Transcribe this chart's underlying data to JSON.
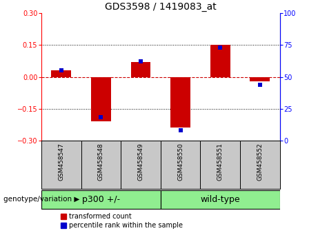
{
  "title": "GDS3598 / 1419083_at",
  "samples": [
    "GSM458547",
    "GSM458548",
    "GSM458549",
    "GSM458550",
    "GSM458551",
    "GSM458552"
  ],
  "transformed_counts": [
    0.03,
    -0.21,
    0.07,
    -0.24,
    0.15,
    -0.02
  ],
  "percentile_ranks": [
    55,
    18,
    62,
    8,
    73,
    44
  ],
  "n_p300": 3,
  "n_wildtype": 3,
  "ylim_left": [
    -0.3,
    0.3
  ],
  "ylim_right": [
    0,
    100
  ],
  "yticks_left": [
    -0.3,
    -0.15,
    0,
    0.15,
    0.3
  ],
  "yticks_right": [
    0,
    25,
    50,
    75,
    100
  ],
  "bar_color": "#CC0000",
  "dot_color": "#0000CC",
  "hline_color": "#CC0000",
  "dotted_color": "black",
  "sample_bg_color": "#C8C8C8",
  "group_color": "#90EE90",
  "white": "#FFFFFF",
  "title_fontsize": 10,
  "tick_fontsize": 7,
  "sample_fontsize": 6.5,
  "group_fontsize": 9,
  "legend_fontsize": 7,
  "genotype_fontsize": 7.5,
  "legend_red_label": "transformed count",
  "legend_blue_label": "percentile rank within the sample",
  "genotype_label": "genotype/variation",
  "p300_label": "p300 +/-",
  "wildtype_label": "wild-type"
}
